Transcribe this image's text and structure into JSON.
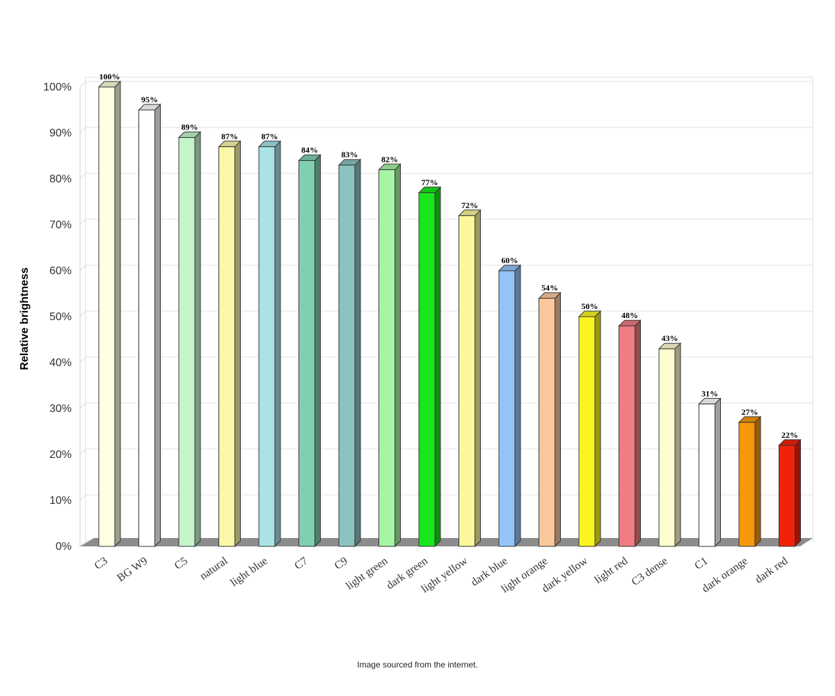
{
  "note": "Image sourced from the internet.",
  "chart_data": {
    "type": "bar",
    "ylabel": "Relative brightness",
    "xlabel": "",
    "ylim": [
      0,
      100
    ],
    "yticks": [
      "0%",
      "10%",
      "20%",
      "30%",
      "40%",
      "50%",
      "60%",
      "70%",
      "80%",
      "90%",
      "100%"
    ],
    "grid": true,
    "categories": [
      "C3",
      "BG W9",
      "C5",
      "natural",
      "light blue",
      "C7",
      "C9",
      "light green",
      "dark green",
      "light yellow",
      "dark blue",
      "light orange",
      "dark yellow",
      "light red",
      "C3 dense",
      "C1",
      "dark orange",
      "dark red"
    ],
    "values": [
      100,
      95,
      89,
      87,
      87,
      84,
      83,
      82,
      77,
      72,
      60,
      54,
      50,
      48,
      43,
      31,
      27,
      22
    ],
    "labels": [
      "100%",
      "95%",
      "89%",
      "87%",
      "87%",
      "84%",
      "83%",
      "82%",
      "77%",
      "72%",
      "60%",
      "54%",
      "50%",
      "48%",
      "43%",
      "31%",
      "27%",
      "22%"
    ],
    "colors": [
      "#FEFEE0",
      "#FFFFFF",
      "#C4F5CA",
      "#FAF7A8",
      "#A9E3E6",
      "#7FCFB1",
      "#8DC2C2",
      "#A6F5A4",
      "#19E61A",
      "#FCF79B",
      "#93C4F8",
      "#FAC79B",
      "#FAF51F",
      "#F07B80",
      "#FEFDCD",
      "#FFFFFF",
      "#F8960B",
      "#F4210A"
    ]
  }
}
